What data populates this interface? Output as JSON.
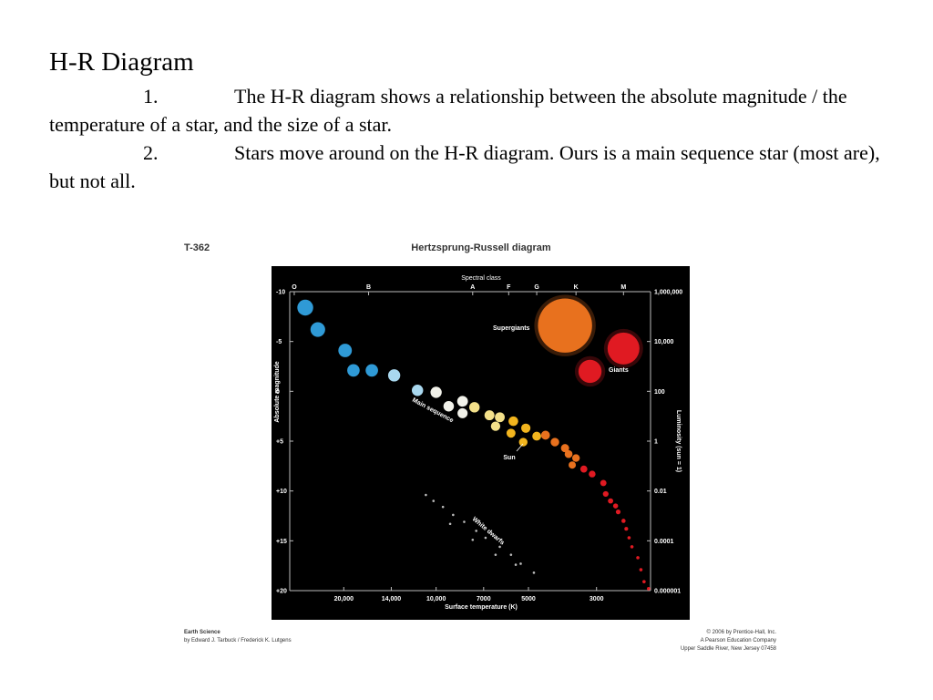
{
  "slide": {
    "title": "H-R Diagram",
    "items": [
      {
        "number": "1.",
        "text": "The H-R diagram shows a relationship between the absolute magnitude / the temperature of a star, and the size of a star."
      },
      {
        "number": "2.",
        "text": "Stars move around on the H-R diagram.  Ours is a main sequence star (most are), but not all."
      }
    ],
    "figure": {
      "code": "T-362",
      "credits_left": [
        "Earth Science",
        "by Edward J. Tarbuck / Frederick K. Lutgens"
      ],
      "credits_right": [
        "© 2006 by Prentice-Hall, Inc.",
        "A Pearson Education Company",
        "Upper Saddle River, New Jersey 07458"
      ]
    }
  },
  "chart_data": {
    "type": "scatter",
    "title": "Hertzsprung-Russell diagram",
    "xlabel": "Surface temperature (K)",
    "x2label": "Spectral class",
    "ylabel": "Absolute magnitude",
    "y2label": "Luminosity (sun = 1)",
    "xscale": "log",
    "xlim": [
      30000,
      2000
    ],
    "xticks": [
      {
        "value": 20000,
        "label": "20,000"
      },
      {
        "value": 14000,
        "label": "14,000"
      },
      {
        "value": 10000,
        "label": "10,000"
      },
      7000,
      5000,
      3000
    ],
    "x2ticks": [
      {
        "value": 29000,
        "label": "O"
      },
      {
        "value": 16600,
        "label": "B"
      },
      {
        "value": 7600,
        "label": "A"
      },
      {
        "value": 5800,
        "label": "F"
      },
      {
        "value": 4700,
        "label": "G"
      },
      {
        "value": 3500,
        "label": "K"
      },
      {
        "value": 2450,
        "label": "M"
      }
    ],
    "ylim": [
      -10,
      20
    ],
    "y_inverted": true,
    "yticks": [
      -10,
      -5,
      0,
      {
        "value": 5,
        "label": "+5"
      },
      {
        "value": 10,
        "label": "+10"
      },
      {
        "value": 15,
        "label": "+15"
      },
      {
        "value": 20,
        "label": "+20"
      }
    ],
    "y2scale": "log",
    "y2lim": [
      1000000,
      1e-06
    ],
    "y2ticks": [
      {
        "value": 1000000,
        "label": "1,000,000"
      },
      {
        "value": 10000,
        "label": "10,000"
      },
      100,
      1,
      0.01,
      0.0001,
      {
        "value": 1e-06,
        "label": "0.000001"
      }
    ],
    "sun_label": "Sun",
    "series": [
      {
        "name": "Main sequence",
        "x": [
          26700,
          24300,
          19800,
          18600,
          16200,
          13700,
          11500,
          10000,
          9100,
          8200,
          7500,
          8200,
          6700,
          6200,
          6400,
          5600,
          5100,
          5700,
          5200,
          4700,
          4400,
          4100,
          3800,
          3700,
          3500,
          3600,
          3300,
          3100,
          2850,
          2800,
          2700,
          2600,
          2550,
          2450,
          2400,
          2350,
          2300,
          2200,
          2150,
          2100,
          2030
        ],
        "y": [
          -8.4,
          -6.2,
          -4.1,
          -2.1,
          -2.1,
          -1.6,
          -0.1,
          0.1,
          1.5,
          1.0,
          1.6,
          2.2,
          2.4,
          2.6,
          3.5,
          3.0,
          3.7,
          4.2,
          5.1,
          4.5,
          4.4,
          5.1,
          5.7,
          6.3,
          6.7,
          7.4,
          7.8,
          8.3,
          9.2,
          10.3,
          11.0,
          11.5,
          12.1,
          13.0,
          13.8,
          14.7,
          15.6,
          16.7,
          17.9,
          19.1,
          19.8
        ]
      },
      {
        "name": "Supergiants",
        "x": [
          3800,
          2450
        ],
        "y": [
          -6.6,
          -4.3
        ]
      },
      {
        "name": "Giants",
        "x": [
          3150
        ],
        "y": [
          -2.0
        ]
      },
      {
        "name": "White dwarfs",
        "x": [
          10800,
          10200,
          9500,
          8800,
          8100,
          7400,
          6900,
          6200,
          5700,
          5300,
          4800,
          9000,
          7600,
          6400,
          5500
        ],
        "y": [
          10.4,
          11.0,
          11.6,
          12.4,
          13.1,
          14.0,
          14.7,
          15.6,
          16.4,
          17.3,
          18.2,
          13.3,
          14.9,
          16.4,
          17.4
        ]
      }
    ]
  }
}
